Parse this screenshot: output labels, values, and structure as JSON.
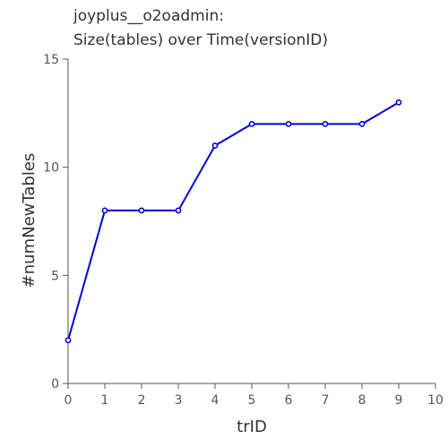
{
  "chart_data": {
    "type": "line",
    "title": "joyplus__o2oadmin:",
    "subtitle": "Size(tables) over Time(versionID)",
    "xlabel": "trID",
    "ylabel": "#numNewTables",
    "xlim": [
      0,
      10
    ],
    "ylim": [
      0,
      15
    ],
    "x_ticks": [
      0,
      1,
      2,
      3,
      4,
      5,
      6,
      7,
      8,
      9,
      10
    ],
    "y_ticks": [
      0,
      5,
      10,
      15
    ],
    "grid": false,
    "series": [
      {
        "x": [
          0,
          1,
          2,
          3,
          4,
          5,
          6,
          7,
          8,
          9
        ],
        "y": [
          2,
          8,
          8,
          8,
          11,
          12,
          12,
          12,
          12,
          13
        ],
        "color": "#0000dd"
      }
    ]
  }
}
